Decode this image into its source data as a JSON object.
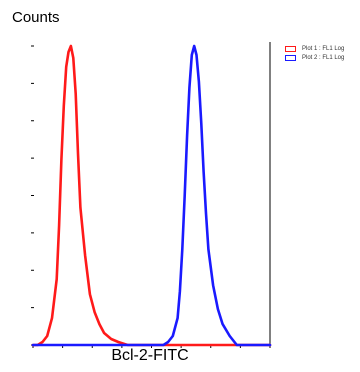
{
  "chart_data": {
    "type": "line",
    "title": "",
    "ylabel": "Counts",
    "xlabel": "Bcl-2-FITC",
    "x_scale": "log",
    "ylim": [
      0,
      100
    ],
    "grid": false,
    "legend_position": "top-right",
    "series": [
      {
        "name": "Plot 1 : FL1 Log",
        "color": "#ff1a1a",
        "x": [
          0,
          2,
          4,
          6,
          8,
          10,
          11,
          12,
          13,
          14,
          15,
          16,
          17,
          18,
          19,
          20,
          22,
          24,
          26,
          28,
          30,
          33,
          36,
          40,
          100
        ],
        "y": [
          0,
          0,
          1,
          3,
          9,
          22,
          40,
          62,
          80,
          93,
          98,
          100,
          96,
          84,
          64,
          46,
          30,
          17,
          11,
          7,
          4,
          2,
          1,
          0,
          0
        ]
      },
      {
        "name": "Plot 2 : FL1 Log",
        "color": "#1a1aff",
        "x": [
          0,
          55,
          57,
          59,
          61,
          62,
          63,
          64,
          65,
          66,
          67,
          68,
          69,
          70,
          71,
          72,
          73,
          74,
          76,
          78,
          80,
          83,
          86,
          100
        ],
        "y": [
          0,
          0,
          1,
          3,
          9,
          18,
          32,
          50,
          70,
          86,
          97,
          100,
          97,
          88,
          74,
          58,
          44,
          32,
          20,
          12,
          7,
          3,
          0,
          0
        ]
      }
    ]
  }
}
